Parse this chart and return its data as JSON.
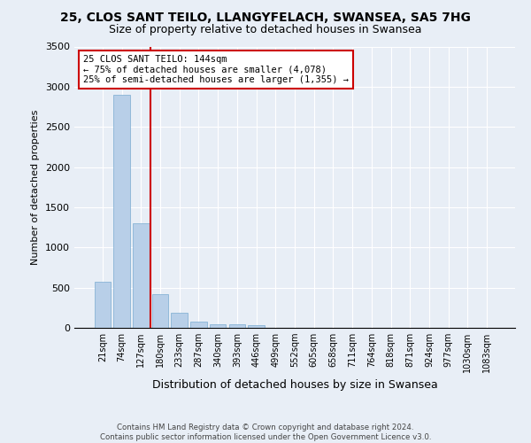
{
  "title": "25, CLOS SANT TEILO, LLANGYFELACH, SWANSEA, SA5 7HG",
  "subtitle": "Size of property relative to detached houses in Swansea",
  "xlabel": "Distribution of detached houses by size in Swansea",
  "ylabel": "Number of detached properties",
  "categories": [
    "21sqm",
    "74sqm",
    "127sqm",
    "180sqm",
    "233sqm",
    "287sqm",
    "340sqm",
    "393sqm",
    "446sqm",
    "499sqm",
    "552sqm",
    "605sqm",
    "658sqm",
    "711sqm",
    "764sqm",
    "818sqm",
    "871sqm",
    "924sqm",
    "977sqm",
    "1030sqm",
    "1083sqm"
  ],
  "values": [
    570,
    2900,
    1300,
    420,
    185,
    80,
    48,
    40,
    35,
    0,
    0,
    0,
    0,
    0,
    0,
    0,
    0,
    0,
    0,
    0,
    0
  ],
  "bar_color": "#b8cfe8",
  "bar_edge_color": "#7aabd0",
  "vline_color": "#cc0000",
  "vline_position": 2.5,
  "annotation_text": "25 CLOS SANT TEILO: 144sqm\n← 75% of detached houses are smaller (4,078)\n25% of semi-detached houses are larger (1,355) →",
  "annotation_box_color": "#ffffff",
  "annotation_box_edge": "#cc0000",
  "ylim": [
    0,
    3500
  ],
  "yticks": [
    0,
    500,
    1000,
    1500,
    2000,
    2500,
    3000,
    3500
  ],
  "title_fontsize": 10,
  "subtitle_fontsize": 9,
  "footer_text": "Contains HM Land Registry data © Crown copyright and database right 2024.\nContains public sector information licensed under the Open Government Licence v3.0.",
  "bg_color": "#e8eef6",
  "plot_bg_color": "#e8eef6"
}
